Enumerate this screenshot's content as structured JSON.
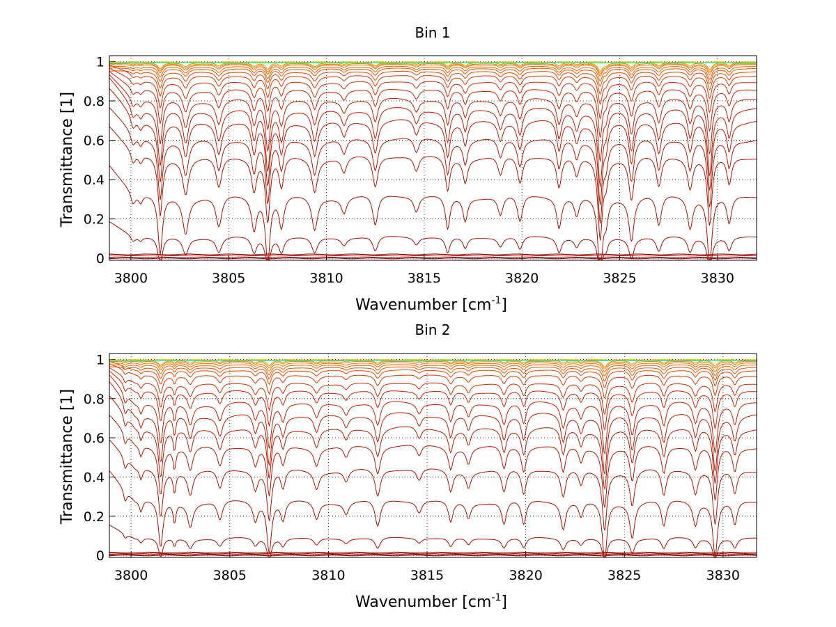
{
  "chart_data": [
    {
      "type": "line",
      "title": "Bin 1",
      "xlabel": "Wavenumber [cm",
      "xlabel_sup": "-1",
      "xlabel_end": "]",
      "ylabel": "Transmittance [1]",
      "xlim": [
        3798.9,
        3832.0
      ],
      "ylim": [
        -0.01,
        1.03
      ],
      "xticks": [
        3800,
        3805,
        3810,
        3815,
        3820,
        3825,
        3830
      ],
      "yticks": [
        0,
        0.2,
        0.4,
        0.6,
        0.8,
        1
      ],
      "ytick_labels": [
        "0",
        "0.2",
        "0.4",
        "0.6",
        "0.8",
        "1"
      ],
      "grid": true,
      "line_colors": {
        "darkest": "#8b0000",
        "mid": "#cc2200",
        "lightest": "#ff8c00",
        "top_extra": [
          "#ffd700",
          "#7fff00",
          "#00ced1"
        ]
      },
      "series_baselines": [
        0.0,
        0.005,
        0.015,
        0.02,
        0.11,
        0.32,
        0.52,
        0.61,
        0.7,
        0.76,
        0.81,
        0.86,
        0.9,
        0.93,
        0.95,
        0.965,
        0.975,
        0.985,
        0.99,
        0.995
      ],
      "absorption_lines": [
        {
          "x": 3800.1,
          "depth": 0.05,
          "width": 0.12
        },
        {
          "x": 3800.5,
          "depth": 0.04,
          "width": 0.12
        },
        {
          "x": 3801.5,
          "depth": 0.3,
          "width": 0.14
        },
        {
          "x": 3802.8,
          "depth": 0.18,
          "width": 0.18
        },
        {
          "x": 3804.5,
          "depth": 0.16,
          "width": 0.18
        },
        {
          "x": 3806.3,
          "depth": 0.17,
          "width": 0.16
        },
        {
          "x": 3807.0,
          "depth": 0.33,
          "width": 0.14
        },
        {
          "x": 3807.7,
          "depth": 0.16,
          "width": 0.15
        },
        {
          "x": 3809.4,
          "depth": 0.17,
          "width": 0.18
        },
        {
          "x": 3810.9,
          "depth": 0.08,
          "width": 0.16
        },
        {
          "x": 3812.5,
          "depth": 0.16,
          "width": 0.16
        },
        {
          "x": 3814.6,
          "depth": 0.08,
          "width": 0.16
        },
        {
          "x": 3816.2,
          "depth": 0.17,
          "width": 0.14
        },
        {
          "x": 3817.1,
          "depth": 0.12,
          "width": 0.14
        },
        {
          "x": 3818.9,
          "depth": 0.1,
          "width": 0.16
        },
        {
          "x": 3819.9,
          "depth": 0.14,
          "width": 0.16
        },
        {
          "x": 3821.9,
          "depth": 0.16,
          "width": 0.15
        },
        {
          "x": 3822.8,
          "depth": 0.1,
          "width": 0.15
        },
        {
          "x": 3824.0,
          "depth": 0.4,
          "width": 0.14
        },
        {
          "x": 3824.3,
          "depth": 0.1,
          "width": 0.12
        },
        {
          "x": 3825.6,
          "depth": 0.22,
          "width": 0.16
        },
        {
          "x": 3827.0,
          "depth": 0.16,
          "width": 0.16
        },
        {
          "x": 3828.6,
          "depth": 0.16,
          "width": 0.16
        },
        {
          "x": 3829.6,
          "depth": 0.35,
          "width": 0.14
        },
        {
          "x": 3830.6,
          "depth": 0.14,
          "width": 0.14
        }
      ]
    },
    {
      "type": "line",
      "title": "Bin 2",
      "xlabel": "Wavenumber [cm",
      "xlabel_sup": "-1",
      "xlabel_end": "]",
      "ylabel": "Transmittance [1]",
      "xlim": [
        3798.9,
        3831.7
      ],
      "ylim": [
        -0.01,
        1.03
      ],
      "xticks": [
        3800,
        3805,
        3810,
        3815,
        3820,
        3825,
        3830
      ],
      "yticks": [
        0,
        0.2,
        0.4,
        0.6,
        0.8,
        1
      ],
      "ytick_labels": [
        "0",
        "0.2",
        "0.4",
        "0.6",
        "0.8",
        "1"
      ],
      "grid": true,
      "line_colors": {
        "darkest": "#8b0000",
        "mid": "#cc2200",
        "lightest": "#ff8c00",
        "top_extra": [
          "#ffd700",
          "#7fff00",
          "#00ced1"
        ]
      },
      "series_baselines": [
        0.0,
        0.005,
        0.01,
        0.015,
        0.09,
        0.28,
        0.44,
        0.56,
        0.65,
        0.72,
        0.78,
        0.84,
        0.88,
        0.92,
        0.945,
        0.96,
        0.972,
        0.982,
        0.99,
        0.995
      ],
      "absorption_lines": [
        {
          "x": 3799.7,
          "depth": 0.06,
          "width": 0.1
        },
        {
          "x": 3800.5,
          "depth": 0.06,
          "width": 0.1
        },
        {
          "x": 3801.5,
          "depth": 0.24,
          "width": 0.14
        },
        {
          "x": 3802.2,
          "depth": 0.1,
          "width": 0.08
        },
        {
          "x": 3803.0,
          "depth": 0.12,
          "width": 0.16
        },
        {
          "x": 3804.5,
          "depth": 0.1,
          "width": 0.16
        },
        {
          "x": 3806.3,
          "depth": 0.1,
          "width": 0.15
        },
        {
          "x": 3807.0,
          "depth": 0.26,
          "width": 0.14
        },
        {
          "x": 3807.7,
          "depth": 0.1,
          "width": 0.14
        },
        {
          "x": 3809.4,
          "depth": 0.09,
          "width": 0.16
        },
        {
          "x": 3810.9,
          "depth": 0.06,
          "width": 0.15
        },
        {
          "x": 3812.5,
          "depth": 0.14,
          "width": 0.16
        },
        {
          "x": 3814.6,
          "depth": 0.06,
          "width": 0.15
        },
        {
          "x": 3816.2,
          "depth": 0.11,
          "width": 0.14
        },
        {
          "x": 3817.1,
          "depth": 0.08,
          "width": 0.14
        },
        {
          "x": 3818.9,
          "depth": 0.12,
          "width": 0.15
        },
        {
          "x": 3819.9,
          "depth": 0.13,
          "width": 0.15
        },
        {
          "x": 3821.9,
          "depth": 0.14,
          "width": 0.15
        },
        {
          "x": 3822.8,
          "depth": 0.08,
          "width": 0.14
        },
        {
          "x": 3824.0,
          "depth": 0.3,
          "width": 0.14
        },
        {
          "x": 3825.4,
          "depth": 0.18,
          "width": 0.15
        },
        {
          "x": 3827.0,
          "depth": 0.14,
          "width": 0.15
        },
        {
          "x": 3828.6,
          "depth": 0.12,
          "width": 0.15
        },
        {
          "x": 3829.6,
          "depth": 0.28,
          "width": 0.14
        },
        {
          "x": 3830.6,
          "depth": 0.12,
          "width": 0.14
        }
      ]
    }
  ]
}
